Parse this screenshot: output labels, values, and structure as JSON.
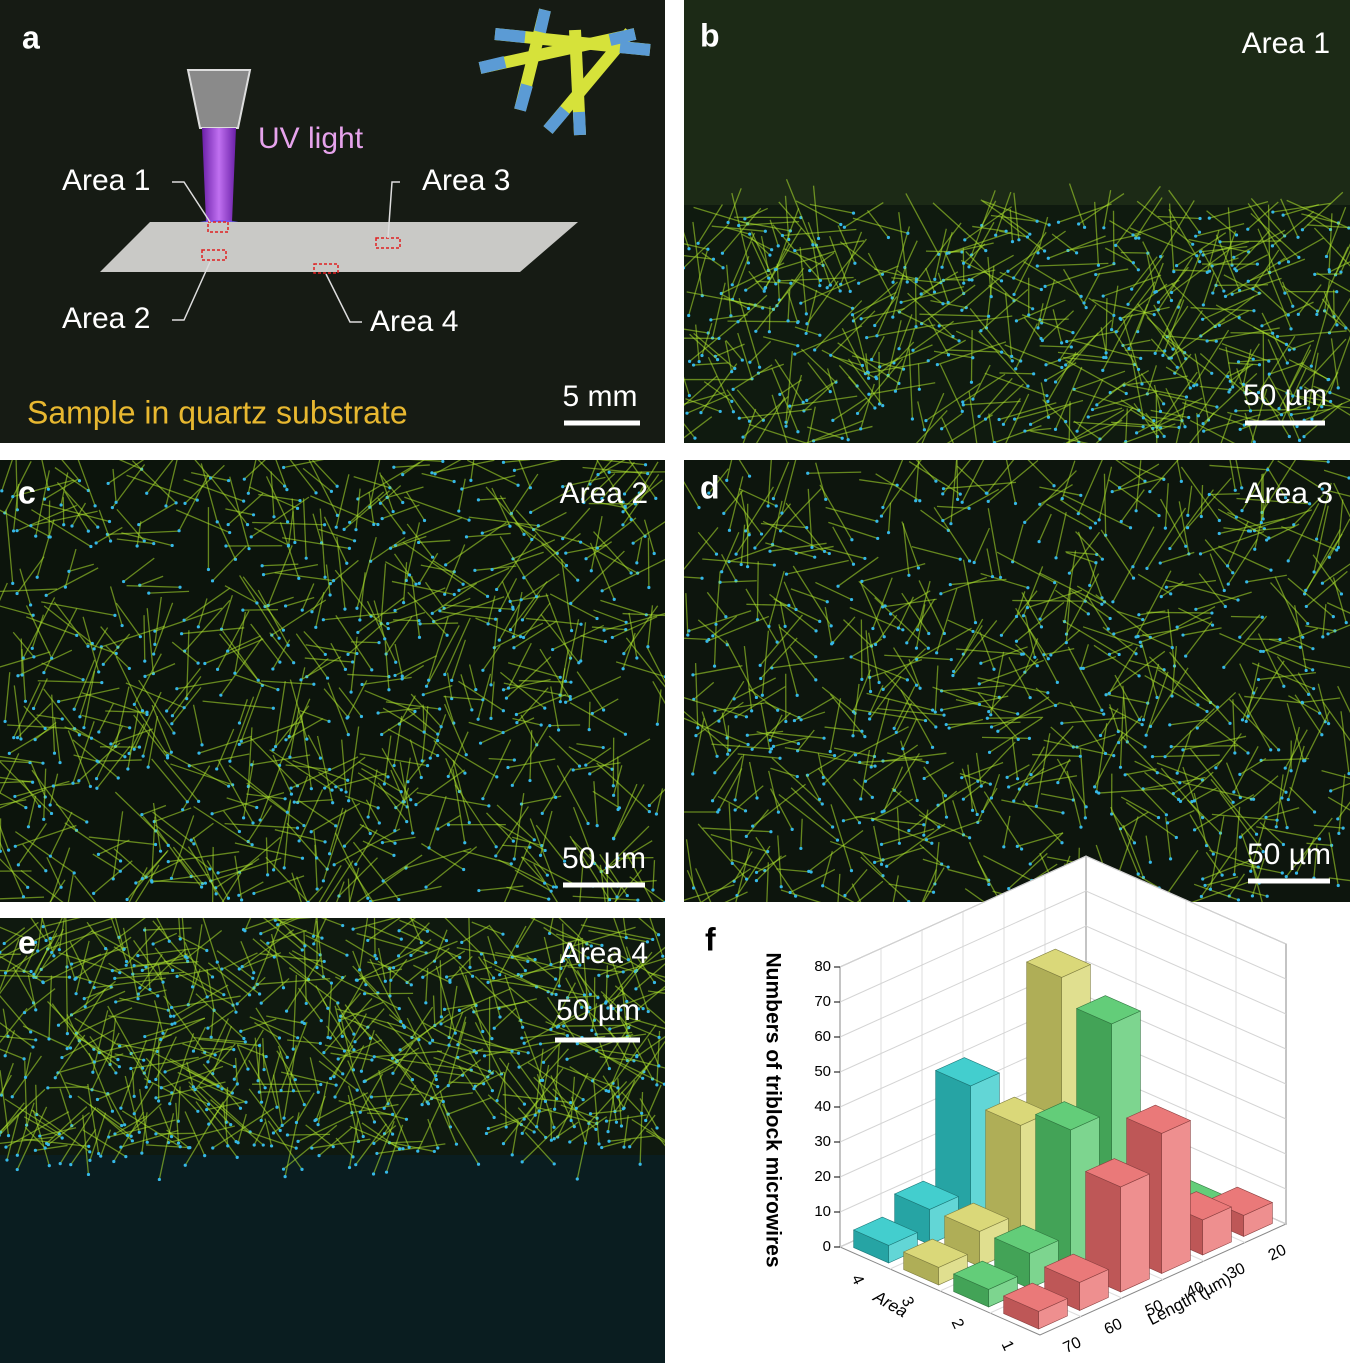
{
  "panel_a": {
    "letter": "a",
    "uv_label": "UV light",
    "area_labels": [
      "Area 1",
      "Area 2",
      "Area 3",
      "Area 4"
    ],
    "caption": "Sample in quartz substrate",
    "scale_bar": "5 mm"
  },
  "micrographs": [
    {
      "letter": "b",
      "area": "Area 1",
      "scale_bar": "50 µm"
    },
    {
      "letter": "c",
      "area": "Area 2",
      "scale_bar": "50 µm"
    },
    {
      "letter": "d",
      "area": "Area 3",
      "scale_bar": "50 µm"
    },
    {
      "letter": "e",
      "area": "Area 4",
      "scale_bar": "50 µm"
    }
  ],
  "chart_data": {
    "type": "bar3d",
    "panel_label": "f",
    "zlabel": "Numbers of triblock microwires",
    "xlabel": "Area",
    "ylabel": "Length (µm)",
    "x": [
      20,
      30,
      40,
      50,
      60,
      70
    ],
    "series": [
      {
        "area": 1,
        "color": "#e86a6a",
        "values": [
          6,
          10,
          40,
          30,
          8,
          5
        ]
      },
      {
        "area": 2,
        "color": "#52c76a",
        "values": [
          2,
          5,
          65,
          40,
          10,
          5
        ]
      },
      {
        "area": 3,
        "color": "#d6d46a",
        "values": [
          1,
          3,
          72,
          35,
          10,
          5
        ]
      },
      {
        "area": 4,
        "color": "#2ec8c8",
        "values": [
          1,
          2,
          5,
          40,
          10,
          5
        ]
      }
    ],
    "ylim": [
      0,
      80
    ],
    "yticks": [
      0,
      10,
      20,
      30,
      40,
      50,
      60,
      70,
      80
    ],
    "grid": true
  }
}
